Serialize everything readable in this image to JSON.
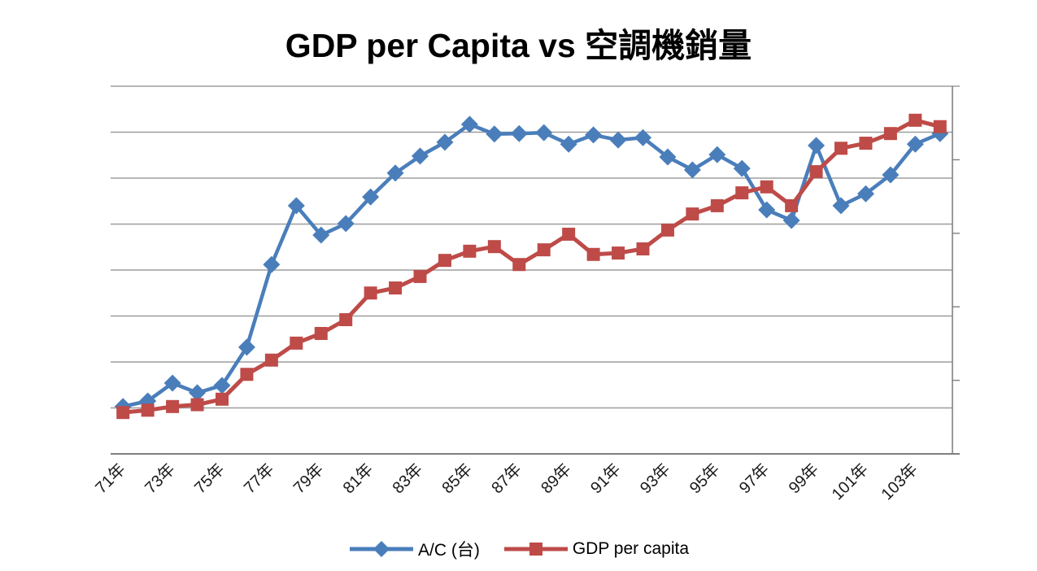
{
  "title": "GDP per Capita vs 空調機銷量",
  "legend": {
    "items": [
      {
        "label": "A/C (台)",
        "marker": "diamond",
        "color": "#4A7EBB"
      },
      {
        "label": "GDP per capita",
        "marker": "square",
        "color": "#BE4B48"
      }
    ]
  },
  "chart_data": {
    "type": "line",
    "title": "GDP per Capita vs 空調機銷量",
    "x_values": [
      71,
      72,
      73,
      74,
      75,
      76,
      77,
      78,
      79,
      80,
      81,
      82,
      83,
      84,
      85,
      86,
      87,
      88,
      89,
      90,
      91,
      92,
      93,
      94,
      95,
      96,
      97,
      98,
      99,
      100,
      101,
      102,
      103,
      104
    ],
    "x_tick_labels": [
      "71年",
      "73年",
      "75年",
      "77年",
      "79年",
      "81年",
      "83年",
      "85年",
      "87年",
      "89年",
      "91年",
      "93年",
      "95年",
      "97年",
      "99年",
      "101年",
      "103年"
    ],
    "x_tick_every": 2,
    "series": [
      {
        "name": "A/C (台)",
        "color": "#4A7EBB",
        "marker": "diamond",
        "values": [
          1.03,
          1.15,
          1.54,
          1.33,
          1.49,
          2.32,
          4.12,
          5.4,
          4.76,
          5.01,
          5.59,
          6.11,
          6.48,
          6.78,
          7.17,
          6.96,
          6.97,
          6.99,
          6.74,
          6.94,
          6.83,
          6.88,
          6.46,
          6.18,
          6.51,
          6.21,
          5.31,
          5.08,
          6.71,
          5.4,
          5.66,
          6.07,
          6.74,
          6.97
        ]
      },
      {
        "name": "GDP per capita",
        "color": "#BE4B48",
        "marker": "square",
        "values": [
          0.9,
          0.95,
          1.03,
          1.07,
          1.19,
          1.73,
          2.04,
          2.41,
          2.62,
          2.92,
          3.5,
          3.61,
          3.86,
          4.21,
          4.41,
          4.51,
          4.12,
          4.44,
          4.78,
          4.34,
          4.37,
          4.46,
          4.87,
          5.22,
          5.4,
          5.68,
          5.81,
          5.4,
          6.14,
          6.65,
          6.76,
          6.97,
          7.26,
          7.12
        ]
      }
    ],
    "ylim": [
      0,
      8
    ],
    "y_value_units": "left-axis gridline intervals (0 = bottom axis, 8 = top gridline); no numeric axis labels are visible in the chart",
    "axes": {
      "left_gridlines_count": 9,
      "left_axis_labels_visible": false,
      "right_axis_ticks_count": 6,
      "right_axis_labels_visible": false,
      "grid": true,
      "grid_color": "#9D9D9D",
      "axis_line_color": "#808080"
    },
    "legend_position": "bottom-center"
  }
}
